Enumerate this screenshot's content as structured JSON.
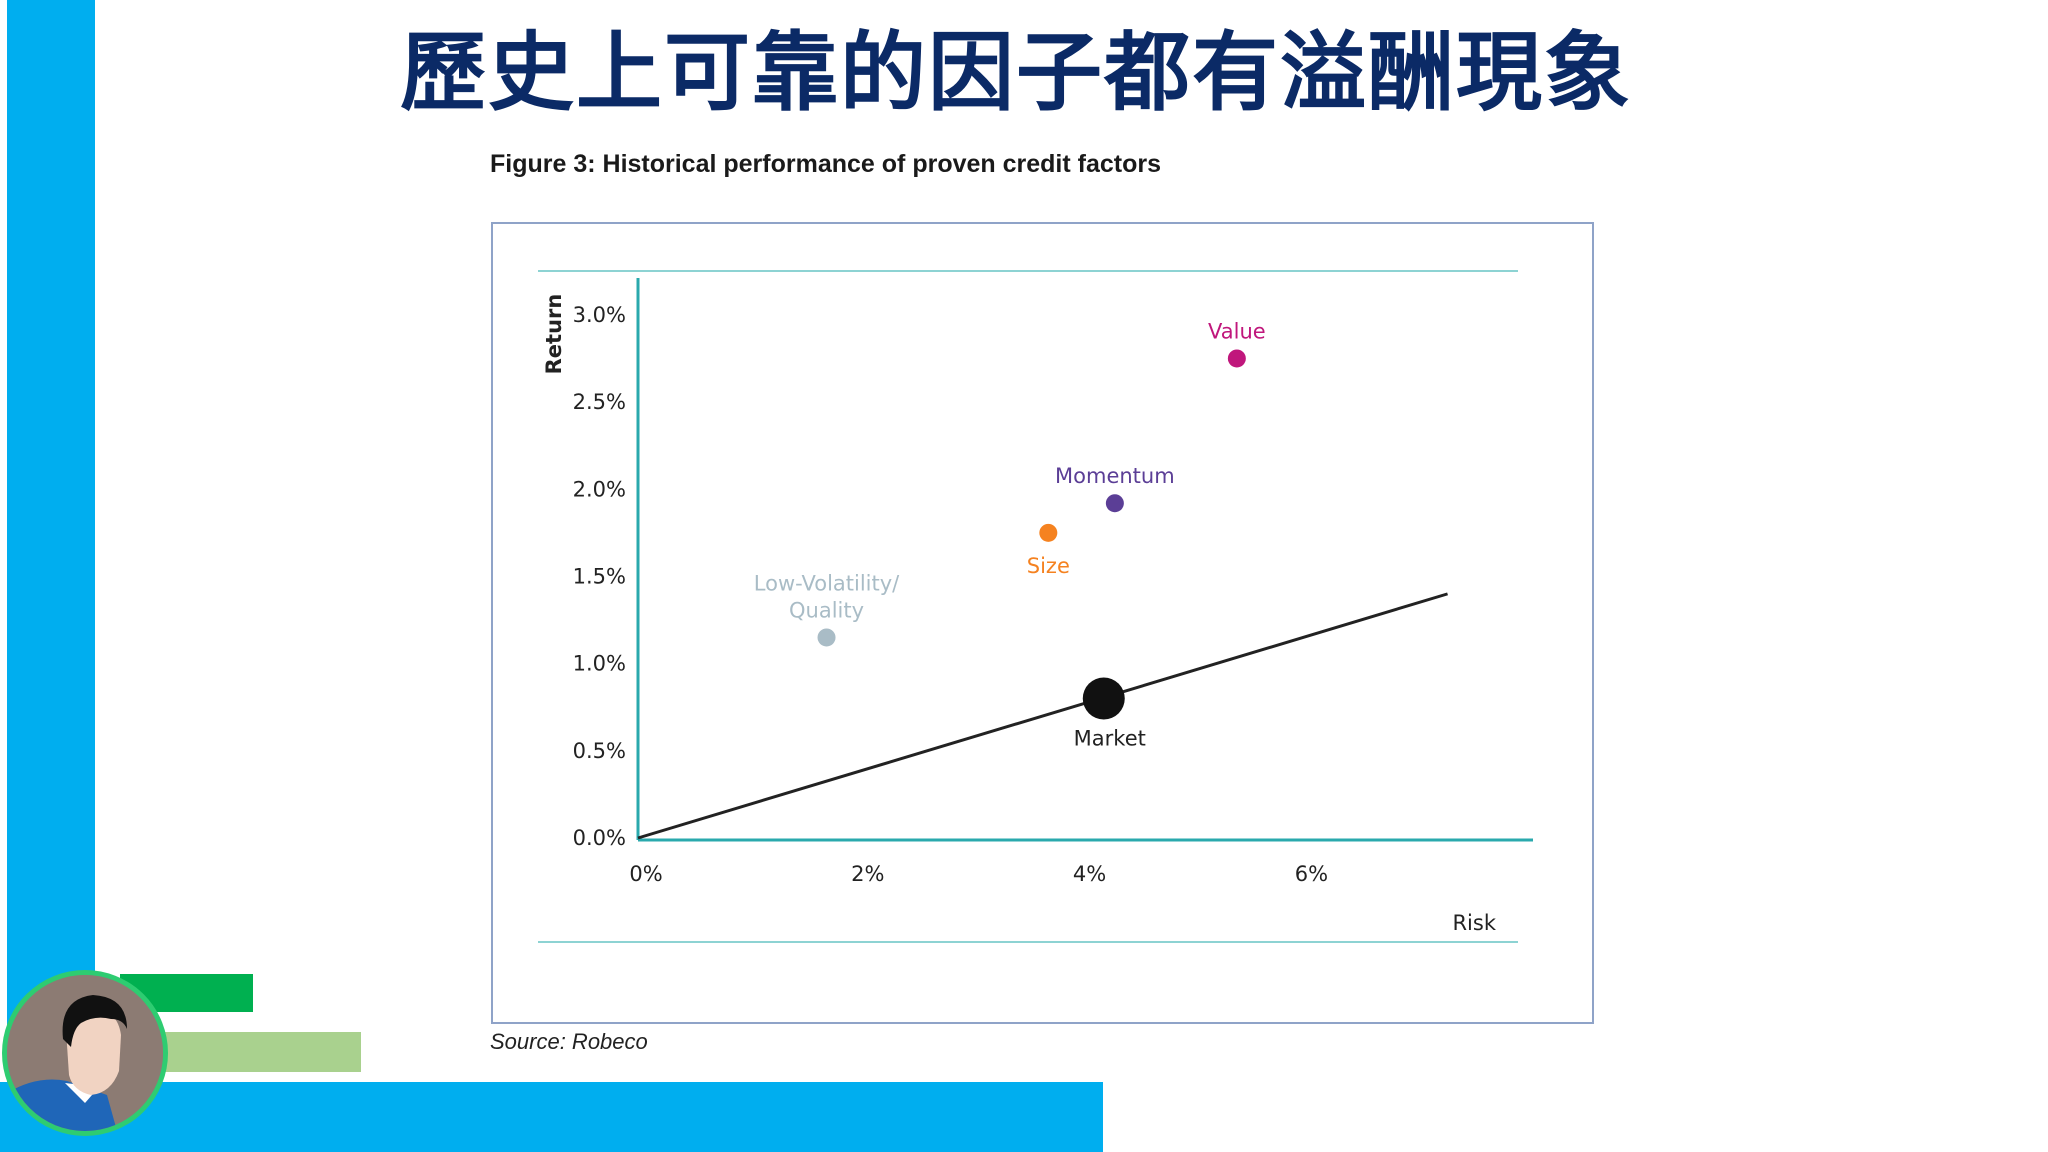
{
  "slide": {
    "title": "歷史上可靠的因子都有溢酬現象",
    "figure_caption": "Figure 3: Historical performance of proven credit factors",
    "source": "Source: Robeco"
  },
  "colors": {
    "left_bar": "#00aeef",
    "bottom_bar": "#00aeef",
    "green_bar": "#00b050",
    "light_green_bar": "#a9d18e",
    "title": "#0b2a66",
    "axis": "#2aa9ad"
  },
  "chart_data": {
    "type": "scatter",
    "title": "Figure 3: Historical performance of proven credit factors",
    "xlabel": "Risk",
    "ylabel": "Return",
    "xlim": [
      0,
      7.8
    ],
    "ylim": [
      0,
      3.2
    ],
    "x_ticks": [
      "0%",
      "2%",
      "4%",
      "6%"
    ],
    "x_tick_values": [
      0,
      2,
      4,
      6
    ],
    "y_ticks": [
      "0.0%",
      "0.5%",
      "1.0%",
      "1.5%",
      "2.0%",
      "2.5%",
      "3.0%"
    ],
    "y_tick_values": [
      0,
      0.5,
      1.0,
      1.5,
      2.0,
      2.5,
      3.0
    ],
    "points": [
      {
        "name": "Low-Volatility/ Quality",
        "label_lines": [
          "Low-Volatility/",
          "Quality"
        ],
        "x": 1.7,
        "y": 1.15,
        "color": "#a9bcc6"
      },
      {
        "name": "Size",
        "label_lines": [
          "Size"
        ],
        "x": 3.7,
        "y": 1.75,
        "color": "#f58220"
      },
      {
        "name": "Momentum",
        "label_lines": [
          "Momentum"
        ],
        "x": 4.3,
        "y": 1.92,
        "color": "#5b3e96"
      },
      {
        "name": "Value",
        "label_lines": [
          "Value"
        ],
        "x": 5.4,
        "y": 2.75,
        "color": "#c0177c"
      },
      {
        "name": "Market",
        "label_lines": [
          "Market"
        ],
        "x": 4.2,
        "y": 0.8,
        "color": "#111111"
      }
    ],
    "market_line": {
      "x": [
        0,
        7.3
      ],
      "y": [
        0,
        1.4
      ],
      "color": "#222222"
    },
    "grid": false,
    "legend": "none"
  }
}
